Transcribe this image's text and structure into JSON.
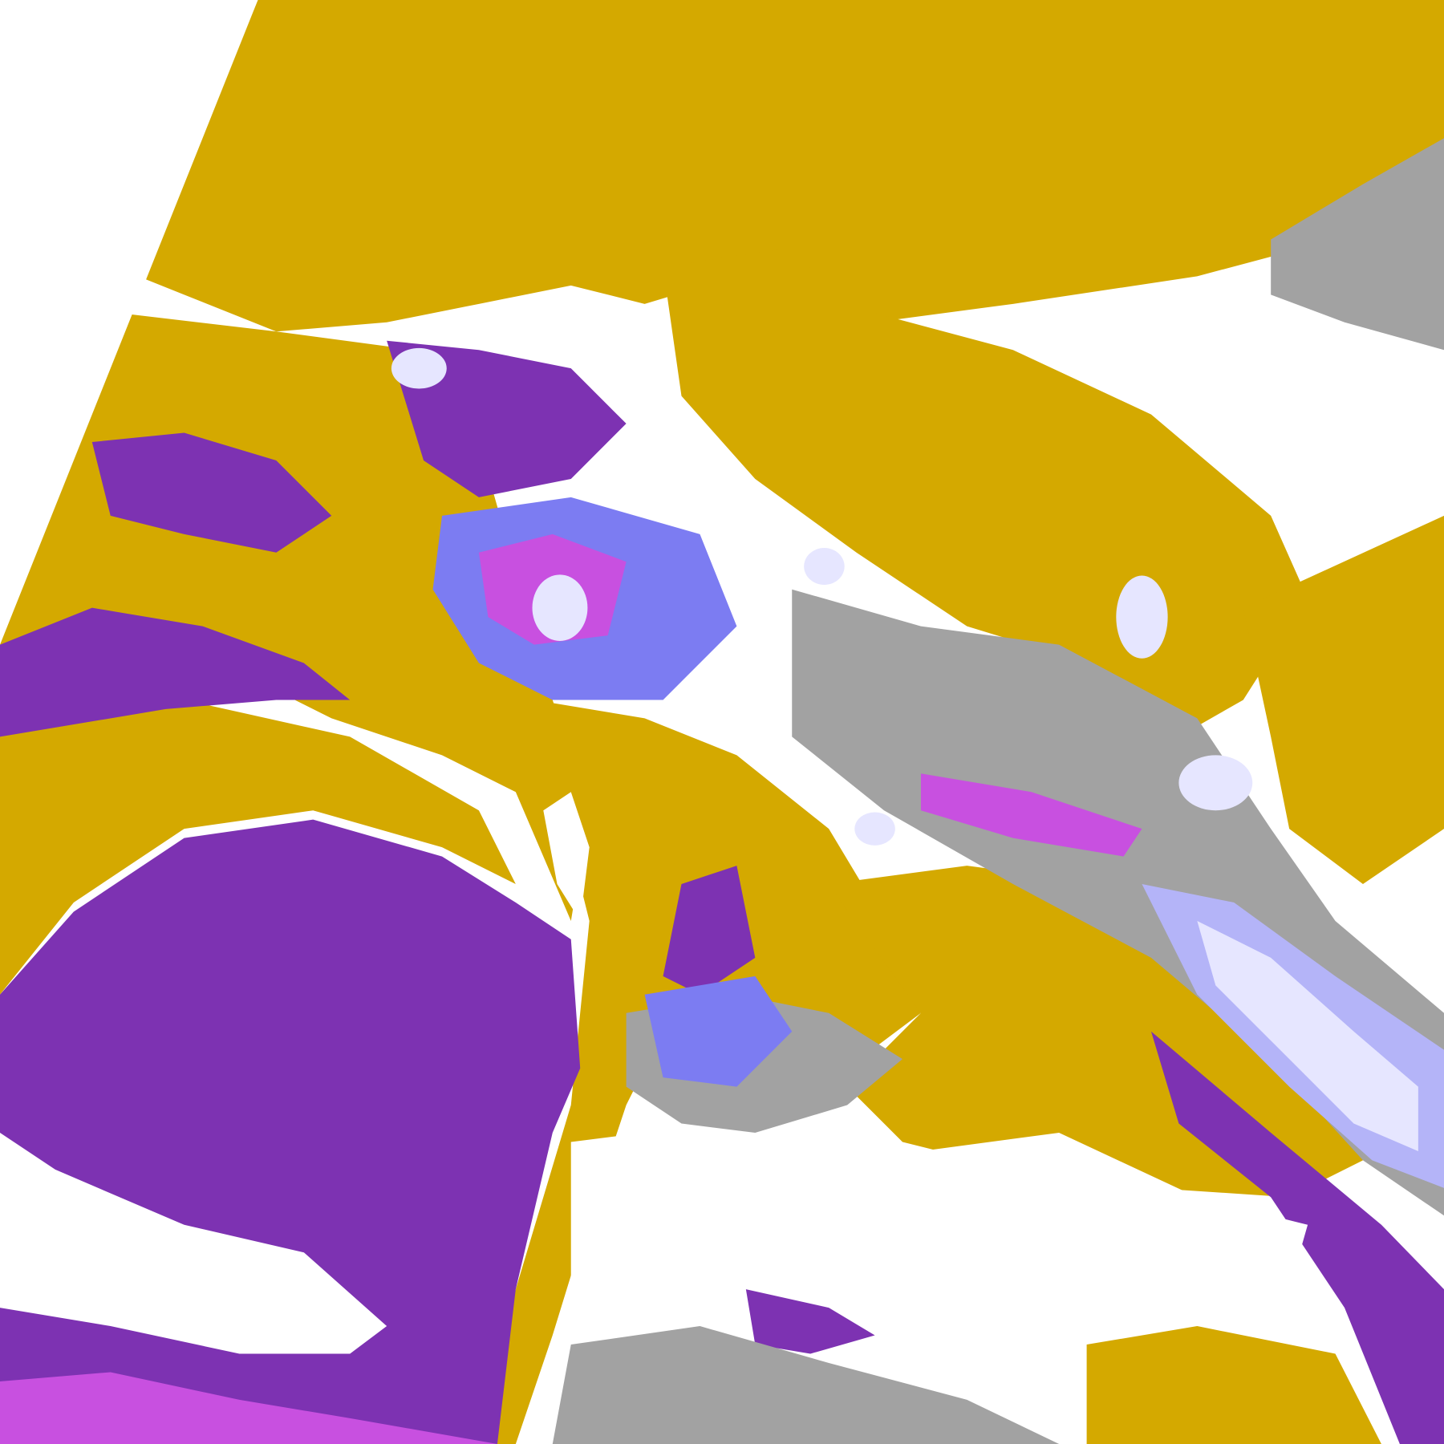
{
  "map": {
    "kind": "satellite cloud classification image",
    "colors": {
      "background": "#ffffff",
      "gold": "#d4a900",
      "dark_gold": "#b8900a",
      "purple": "#7d32b2",
      "magenta": "#c850e0",
      "blue": "#7c7cf2",
      "lavender": "#e6e6ff",
      "light_blue": "#b4b4f8",
      "gray": "#9a9a9a",
      "light_gray": "#c4c4c4"
    }
  }
}
